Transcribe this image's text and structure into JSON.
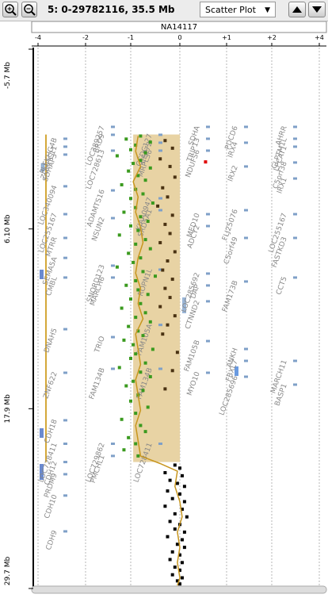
{
  "toolbar": {
    "location": "5: 0-29782116, 35.5 Mb",
    "view_mode": "Scatter Plot"
  },
  "chart_data": {
    "type": "scatter",
    "title": "NA14117",
    "xlim": [
      -4,
      4
    ],
    "xticks": [
      -4,
      -2,
      -1,
      0,
      {
        "value": 1,
        "label": "+1"
      },
      {
        "value": 2,
        "label": "+2"
      },
      {
        "value": 4,
        "label": "+4"
      }
    ],
    "ylim": [
      -5.7,
      29.7
    ],
    "yticks": [
      {
        "value": -5.7,
        "label": "-5.7 Mb"
      },
      {
        "value": 6.1,
        "label": "6.10 Mb"
      },
      {
        "value": 17.9,
        "label": "17.9 Mb"
      },
      {
        "value": 29.7,
        "label": "29.7 Mb"
      }
    ],
    "grid": true,
    "segments": [
      {
        "start": -0.1,
        "end": 21.4,
        "value": -0.95,
        "color": "#e8d3a4"
      }
    ],
    "series": [
      {
        "color": "#3a9a1e",
        "y": [
          0.0,
          0.2,
          0.4,
          0.6,
          0.9,
          1.1,
          1.3,
          1.6,
          1.8,
          2.1,
          2.3,
          2.6,
          2.9,
          3.2,
          3.5,
          3.8,
          4.1,
          4.4,
          4.7,
          5.0,
          5.3,
          5.6,
          5.9,
          6.2,
          6.5,
          6.8,
          7.1,
          7.4,
          7.7,
          8.0,
          8.3,
          8.6,
          8.9,
          9.2,
          9.5,
          9.8,
          10.1,
          10.4,
          10.7,
          11.0,
          11.3,
          11.6,
          11.9,
          12.2,
          12.5,
          12.8,
          13.1,
          13.4,
          13.7,
          14.0,
          14.3,
          14.6,
          14.9,
          15.2,
          15.5,
          15.8,
          16.1,
          16.4,
          16.7,
          17.0,
          17.4,
          17.8,
          18.2,
          18.6,
          19.0,
          19.4,
          19.8,
          20.2,
          20.6,
          21.0
        ],
        "x": [
          -0.8,
          -1.1,
          -0.6,
          -0.9,
          -1.0,
          -0.7,
          -1.3,
          -0.8,
          -0.95,
          -0.6,
          -1.05,
          -0.85,
          -0.7,
          -1.2,
          -0.9,
          -0.75,
          -1.0,
          -0.55,
          -0.9,
          -1.15,
          -0.8,
          -0.65,
          -1.0,
          -0.85,
          -1.25,
          -0.7,
          -0.9,
          -0.6,
          -1.05,
          -0.8,
          -0.95,
          -1.3,
          -0.75,
          -0.5,
          -0.9,
          -1.1,
          -0.85,
          -0.65,
          -1.0,
          -0.8,
          -1.2,
          -0.7,
          -0.9,
          -0.6,
          -1.05,
          -0.85,
          -0.75,
          -1.15,
          -0.95,
          -0.55,
          -0.9,
          -1.0,
          -0.7,
          -1.25,
          -0.8,
          -0.6,
          -0.95,
          -1.1,
          -0.75,
          -0.85,
          -1.0,
          -0.65,
          -0.9,
          -1.2,
          -0.8,
          -0.7,
          -1.05,
          -0.9,
          -1.15,
          -0.85
        ]
      },
      {
        "color": "#4a3212",
        "y": [
          0.3,
          0.8,
          1.5,
          2.0,
          2.7,
          3.4,
          4.0,
          4.6,
          5.2,
          5.8,
          6.4,
          7.0,
          7.6,
          8.2,
          8.8,
          9.4,
          10.0,
          10.6,
          11.2,
          11.8,
          12.4,
          13.0,
          14.2,
          15.4,
          16.6
        ],
        "x": [
          -0.3,
          -0.15,
          -0.4,
          -0.2,
          -0.1,
          -0.35,
          -0.25,
          -0.45,
          -0.15,
          -0.3,
          -0.2,
          -0.4,
          -0.1,
          -0.25,
          -0.35,
          -0.15,
          -0.3,
          -0.2,
          -0.4,
          -0.1,
          -0.25,
          -0.35,
          -0.05,
          -0.15,
          -0.3
        ]
      },
      {
        "color": "#000000",
        "y": [
          21.6,
          21.8,
          22.1,
          22.3,
          22.6,
          22.8,
          23.0,
          23.3,
          23.5,
          23.8,
          24.0,
          24.3,
          24.5,
          24.8,
          25.0,
          25.3,
          25.5,
          25.8,
          26.0,
          26.3,
          26.5,
          26.8,
          27.0,
          27.3,
          27.5,
          27.8,
          28.0,
          28.3,
          28.5,
          28.8,
          29.0,
          29.2,
          29.4
        ],
        "x": [
          -0.1,
          0.0,
          -0.3,
          0.05,
          -0.2,
          -0.05,
          0.1,
          -0.25,
          0.0,
          -0.15,
          0.1,
          -0.3,
          0.05,
          -0.1,
          0.15,
          -0.2,
          0.0,
          -0.1,
          0.1,
          -0.25,
          0.05,
          -0.05,
          0.1,
          -0.15,
          0.0,
          -0.2,
          0.05,
          -0.1,
          0.0,
          -0.15,
          0.05,
          -0.05,
          0.0
        ]
      },
      {
        "color": "#e00000",
        "y": [
          1.7
        ],
        "x": [
          0.55
        ]
      }
    ],
    "trend": {
      "color": "#c8961e",
      "y": [
        0,
        1,
        2,
        3,
        4,
        5,
        6,
        7,
        8,
        9,
        10,
        11,
        12,
        13,
        14,
        15,
        16,
        17,
        18,
        19,
        20,
        21,
        21.5,
        22,
        23,
        24,
        25,
        26,
        27,
        28,
        29,
        29.5
      ],
      "x": [
        -0.85,
        -0.9,
        -0.8,
        -0.95,
        -0.85,
        -0.9,
        -0.8,
        -0.75,
        -0.85,
        -0.9,
        -0.8,
        -0.85,
        -0.75,
        -0.9,
        -0.85,
        -0.8,
        -0.9,
        -0.85,
        -0.8,
        -0.9,
        -0.85,
        -0.8,
        -0.4,
        -0.05,
        -0.1,
        0.0,
        0.05,
        -0.05,
        0.0,
        -0.05,
        0.0,
        -0.05
      ]
    },
    "gene_tracks": [
      [
        {
          "name": "PLEKHG4B",
          "mb": 0.18
        },
        {
          "name": "ZDHHC11",
          "mb": 0.7
        },
        {
          "name": "SDHAP3",
          "mb": 1.22
        },
        {
          "name": "LOC340094",
          "mb": 3.3
        },
        {
          "name": "LOC255167",
          "mb": 5.13
        },
        {
          "name": "MTRR",
          "mb": 6.69
        },
        {
          "name": "SEMA5A",
          "mb": 8.0
        },
        {
          "name": "CMBL",
          "mb": 9.29
        },
        {
          "name": "DNAH5",
          "mb": 12.68
        },
        {
          "name": "ZNF622",
          "mb": 15.54
        },
        {
          "name": "CDH18",
          "mb": 18.66
        },
        {
          "name": "LOC728411",
          "mb": 20.2
        },
        {
          "name": "CDH12",
          "mb": 21.4
        },
        {
          "name": "PRDM9",
          "mb": 22.2
        },
        {
          "name": "CDH10",
          "mb": 23.6
        },
        {
          "name": "CDH9",
          "mb": 25.95
        }
      ],
      [
        {
          "name": "LOC389257",
          "mb": -0.6
        },
        {
          "name": "BRD9",
          "mb": -0.08
        },
        {
          "name": "LOC728613",
          "mb": 0.96
        },
        {
          "name": "ADAMTS16",
          "mb": 3.57
        },
        {
          "name": "NSUN2",
          "mb": 5.39
        },
        {
          "name": "SNORD123",
          "mb": 8.51
        },
        {
          "name": "MARCH6",
          "mb": 9.29
        },
        {
          "name": "TRIO",
          "mb": 13.2
        },
        {
          "name": "FAM134B",
          "mb": 15.28
        },
        {
          "name": "LOC729862",
          "mb": 20.2
        },
        {
          "name": "PMCHL1",
          "mb": 21.0
        }
      ],
      [
        {
          "name": "CCDC127",
          "mb": -0.08
        },
        {
          "name": "CEP72",
          "mb": 0.44
        },
        {
          "name": "MRPL36",
          "mb": 0.96
        },
        {
          "name": "KIAA0947",
          "mb": 4.09
        },
        {
          "name": "SRD5A1",
          "mb": 4.87
        },
        {
          "name": "ROPN1L",
          "mb": 8.77
        },
        {
          "name": "FAM105A",
          "mb": 12.4
        },
        {
          "name": "FAM134B",
          "mb": 15.28
        },
        {
          "name": "LOC728411",
          "mb": 20.2
        }
      ],
      [
        {
          "name": "SDHA",
          "mb": -0.6
        },
        {
          "name": "TRIP13",
          "mb": 0.18
        },
        {
          "name": "NDUFS6",
          "mb": 0.96
        },
        {
          "name": "MED10",
          "mb": 5.13
        },
        {
          "name": "ADCY2",
          "mb": 5.91
        },
        {
          "name": "LOC285692",
          "mb": 9.03
        },
        {
          "name": "DAP",
          "mb": 9.81
        },
        {
          "name": "CTNND2",
          "mb": 10.85
        },
        {
          "name": "FAM105B",
          "mb": 13.46
        },
        {
          "name": "MYO10",
          "mb": 15.54
        }
      ],
      [
        {
          "name": "PDCD6",
          "mb": -0.6
        },
        {
          "name": "IRX4",
          "mb": 0.44
        },
        {
          "name": "IRX2",
          "mb": 2.0
        },
        {
          "name": "FLJ25076",
          "mb": 4.87
        },
        {
          "name": "C5orf49",
          "mb": 6.69
        },
        {
          "name": "FAM173B",
          "mb": 9.55
        },
        {
          "name": "ANKH",
          "mb": 13.98
        },
        {
          "name": "FBXL7",
          "mb": 14.76
        },
        {
          "name": "LOC285696",
          "mb": 15.8
        }
      ],
      [
        {
          "name": "AHRR",
          "mb": -0.6
        },
        {
          "name": "CLPTM1L",
          "mb": 0.18
        },
        {
          "name": "LPCAT1",
          "mb": 0.7
        },
        {
          "name": "C5orf38",
          "mb": 1.74
        },
        {
          "name": "IRX1",
          "mb": 2.79
        },
        {
          "name": "LOC255167",
          "mb": 5.13
        },
        {
          "name": "FASTKD3",
          "mb": 6.69
        },
        {
          "name": "CCT5",
          "mb": 9.29
        },
        {
          "name": "MARCH11",
          "mb": 14.76
        },
        {
          "name": "BASP1",
          "mb": 16.32
        }
      ]
    ]
  }
}
